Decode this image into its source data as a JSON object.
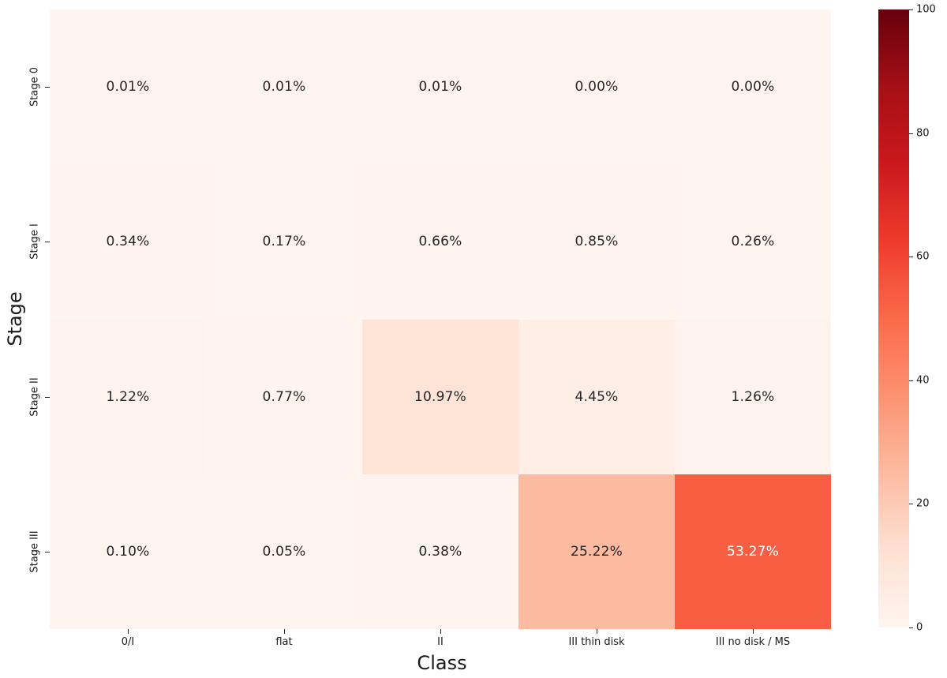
{
  "figure": {
    "background_color": "#ffffff"
  },
  "chart_data": {
    "type": "heatmap",
    "title": "",
    "xlabel": "Class",
    "ylabel": "Stage",
    "x_categories": [
      "0/I",
      "flat",
      "II",
      "III thin disk",
      "III no disk / MS"
    ],
    "y_categories": [
      "Stage 0",
      "Stage I",
      "Stage II",
      "Stage III"
    ],
    "values": [
      [
        0.01,
        0.01,
        0.01,
        0.0,
        0.0
      ],
      [
        0.34,
        0.17,
        0.66,
        0.85,
        0.26
      ],
      [
        1.22,
        0.77,
        10.97,
        4.45,
        1.26
      ],
      [
        0.1,
        0.05,
        0.38,
        25.22,
        53.27
      ]
    ],
    "cell_labels": [
      [
        "0.01%",
        "0.01%",
        "0.01%",
        "0.00%",
        "0.00%"
      ],
      [
        "0.34%",
        "0.17%",
        "0.66%",
        "0.85%",
        "0.26%"
      ],
      [
        "1.22%",
        "0.77%",
        "10.97%",
        "4.45%",
        "1.26%"
      ],
      [
        "0.10%",
        "0.05%",
        "0.38%",
        "25.22%",
        "53.27%"
      ]
    ],
    "annotation_text_color_dark": "#262626",
    "annotation_text_color_light": "#ffffff",
    "grid": false,
    "colormap": {
      "name": "Reds",
      "stops": [
        [
          0.0,
          "#fff5f0"
        ],
        [
          0.125,
          "#fee0d2"
        ],
        [
          0.25,
          "#fcbba1"
        ],
        [
          0.375,
          "#fc9272"
        ],
        [
          0.5,
          "#fb6a4a"
        ],
        [
          0.625,
          "#ef3b2c"
        ],
        [
          0.75,
          "#cb181d"
        ],
        [
          0.875,
          "#a50f15"
        ],
        [
          1.0,
          "#67000d"
        ]
      ]
    },
    "colorbar": {
      "min": 0,
      "max": 100,
      "ticks": [
        "0",
        "20",
        "40",
        "60",
        "80",
        "100"
      ],
      "position": "right"
    }
  }
}
